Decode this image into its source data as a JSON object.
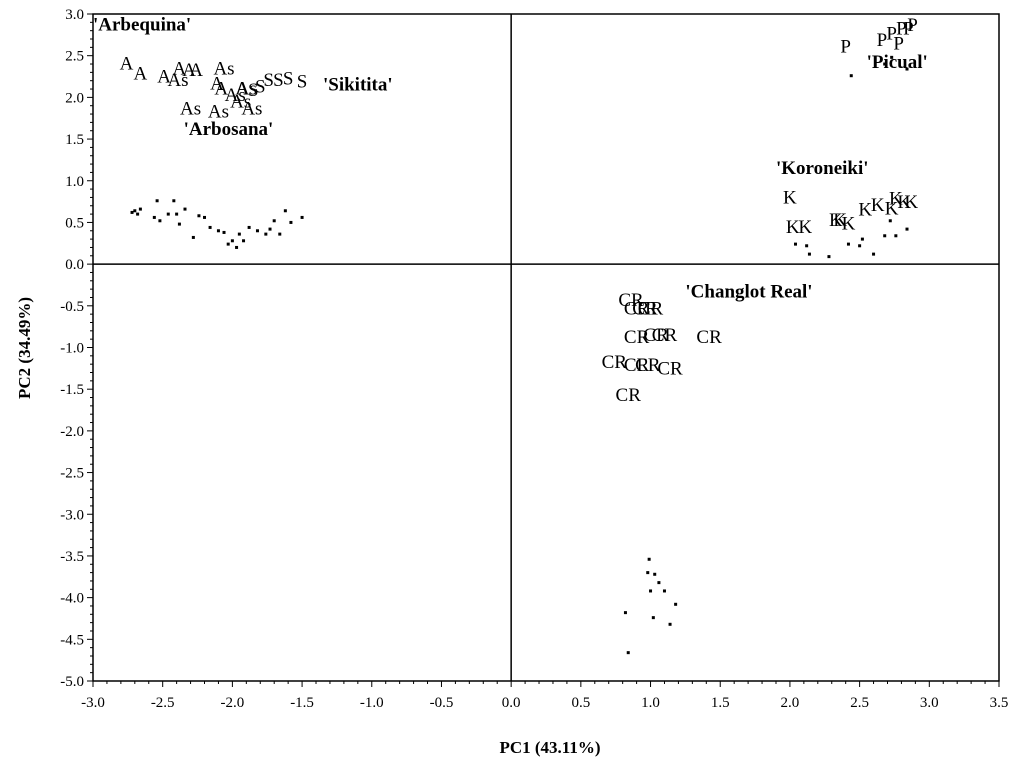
{
  "chart_data": {
    "type": "scatter",
    "title": "",
    "xlabel": "PC1 (43.11%)",
    "ylabel": "PC2 (34.49%)",
    "xlim": [
      -3.0,
      3.5
    ],
    "ylim": [
      -5.0,
      3.0
    ],
    "x_ticks": [
      "-3.0",
      "-2.5",
      "-2.0",
      "-1.5",
      "-1.0",
      "-0.5",
      "0.0",
      "0.5",
      "1.0",
      "1.5",
      "2.0",
      "2.5",
      "3.0",
      "3.5"
    ],
    "y_ticks": [
      "3.0",
      "2.5",
      "2.0",
      "1.5",
      "1.0",
      "0.5",
      "0.0",
      "-0.5",
      "-1.0",
      "-1.5",
      "-2.0",
      "-2.5",
      "-3.0",
      "-3.5",
      "-4.0",
      "-4.5",
      "-5.0"
    ],
    "zero_lines": true,
    "grid": false,
    "cultivar_labels": [
      {
        "text": "'Arbequina'",
        "x": -3.0,
        "y": 2.8
      },
      {
        "text": "'Sikitita'",
        "x": -1.35,
        "y": 2.08
      },
      {
        "text": "'Arbosana'",
        "x": -2.35,
        "y": 1.55
      },
      {
        "text": "'Picual'",
        "x": 2.55,
        "y": 2.35
      },
      {
        "text": "'Koroneiki'",
        "x": 1.9,
        "y": 1.08
      },
      {
        "text": "'Changlot Real'",
        "x": 1.25,
        "y": -0.4
      }
    ],
    "series": [
      {
        "name": "A",
        "points": [
          [
            -2.76,
            2.42
          ],
          [
            -2.66,
            2.3
          ],
          [
            -2.49,
            2.26
          ],
          [
            -2.38,
            2.36
          ],
          [
            -2.31,
            2.34
          ],
          [
            -2.26,
            2.34
          ],
          [
            -2.11,
            2.18
          ],
          [
            -2.08,
            2.12
          ],
          [
            -1.93,
            2.12
          ]
        ]
      },
      {
        "name": "As",
        "points": [
          [
            -2.39,
            2.22
          ],
          [
            -2.3,
            1.88
          ],
          [
            -2.06,
            2.36
          ],
          [
            -1.98,
            2.04
          ],
          [
            -1.94,
            1.96
          ],
          [
            -1.86,
            1.88
          ],
          [
            -2.1,
            1.84
          ],
          [
            -1.9,
            2.12
          ]
        ]
      },
      {
        "name": "S",
        "points": [
          [
            -1.85,
            2.1
          ],
          [
            -1.8,
            2.14
          ],
          [
            -1.74,
            2.22
          ],
          [
            -1.67,
            2.22
          ],
          [
            -1.6,
            2.24
          ],
          [
            -1.5,
            2.2
          ]
        ]
      },
      {
        "name": "P",
        "points": [
          [
            2.4,
            2.62
          ],
          [
            2.66,
            2.7
          ],
          [
            2.73,
            2.78
          ],
          [
            2.8,
            2.84
          ],
          [
            2.85,
            2.84
          ],
          [
            2.88,
            2.88
          ],
          [
            2.78,
            2.66
          ]
        ]
      },
      {
        "name": "K",
        "points": [
          [
            2.0,
            0.81
          ],
          [
            2.02,
            0.46
          ],
          [
            2.11,
            0.46
          ],
          [
            2.33,
            0.54
          ],
          [
            2.36,
            0.54
          ],
          [
            2.42,
            0.5
          ],
          [
            2.54,
            0.67
          ],
          [
            2.63,
            0.72
          ],
          [
            2.73,
            0.68
          ],
          [
            2.76,
            0.8
          ],
          [
            2.82,
            0.76
          ],
          [
            2.87,
            0.76
          ]
        ]
      },
      {
        "name": "CR",
        "points": [
          [
            0.86,
            -0.42
          ],
          [
            0.9,
            -0.52
          ],
          [
            0.96,
            -0.52
          ],
          [
            1.0,
            -0.52
          ],
          [
            0.9,
            -0.86
          ],
          [
            1.04,
            -0.84
          ],
          [
            1.1,
            -0.84
          ],
          [
            1.42,
            -0.86
          ],
          [
            0.74,
            -1.16
          ],
          [
            0.9,
            -1.2
          ],
          [
            0.98,
            -1.2
          ],
          [
            1.14,
            -1.24
          ],
          [
            0.84,
            -1.56
          ]
        ]
      }
    ],
    "unlabeled_points": [
      [
        -2.72,
        0.62
      ],
      [
        -2.7,
        0.64
      ],
      [
        -2.68,
        0.6
      ],
      [
        -2.66,
        0.66
      ],
      [
        -2.56,
        0.56
      ],
      [
        -2.54,
        0.76
      ],
      [
        -2.52,
        0.52
      ],
      [
        -2.46,
        0.6
      ],
      [
        -2.42,
        0.76
      ],
      [
        -2.4,
        0.6
      ],
      [
        -2.38,
        0.48
      ],
      [
        -2.34,
        0.66
      ],
      [
        -2.28,
        0.32
      ],
      [
        -2.24,
        0.58
      ],
      [
        -2.2,
        0.56
      ],
      [
        -2.16,
        0.44
      ],
      [
        -2.1,
        0.4
      ],
      [
        -2.06,
        0.38
      ],
      [
        -2.03,
        0.24
      ],
      [
        -2.0,
        0.28
      ],
      [
        -1.97,
        0.2
      ],
      [
        -1.95,
        0.36
      ],
      [
        -1.92,
        0.28
      ],
      [
        -1.88,
        0.44
      ],
      [
        -1.82,
        0.4
      ],
      [
        -1.76,
        0.36
      ],
      [
        -1.73,
        0.42
      ],
      [
        -1.7,
        0.52
      ],
      [
        -1.66,
        0.36
      ],
      [
        -1.62,
        0.64
      ],
      [
        -1.58,
        0.5
      ],
      [
        -1.5,
        0.56
      ],
      [
        2.44,
        2.26
      ],
      [
        2.68,
        2.4
      ],
      [
        2.73,
        2.48
      ],
      [
        2.84,
        2.34
      ],
      [
        2.04,
        0.24
      ],
      [
        2.12,
        0.22
      ],
      [
        2.14,
        0.12
      ],
      [
        2.28,
        0.09
      ],
      [
        2.42,
        0.24
      ],
      [
        2.5,
        0.22
      ],
      [
        2.52,
        0.3
      ],
      [
        2.6,
        0.12
      ],
      [
        2.68,
        0.34
      ],
      [
        2.72,
        0.52
      ],
      [
        2.76,
        0.34
      ],
      [
        2.84,
        0.42
      ],
      [
        0.99,
        -3.54
      ],
      [
        0.98,
        -3.7
      ],
      [
        1.03,
        -3.72
      ],
      [
        1.06,
        -3.82
      ],
      [
        1.0,
        -3.92
      ],
      [
        1.1,
        -3.92
      ],
      [
        0.82,
        -4.18
      ],
      [
        1.02,
        -4.24
      ],
      [
        1.18,
        -4.08
      ],
      [
        1.14,
        -4.32
      ],
      [
        0.84,
        -4.66
      ]
    ]
  }
}
